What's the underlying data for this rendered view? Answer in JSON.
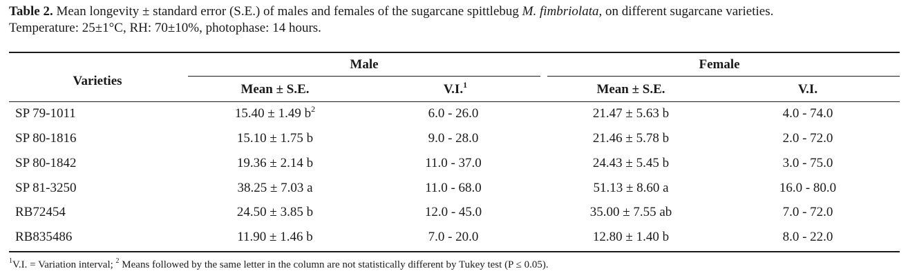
{
  "caption": {
    "label": "Table 2.",
    "text_before": " Mean longevity ± standard error (S.E.) of males and females of the sugarcane spittlebug ",
    "species": "M. fimbriolata",
    "text_after": ", on different sugarcane varieties.",
    "line2": "Temperature: 25±1°C, RH: 70±10%, photophase: 14 hours."
  },
  "header": {
    "varieties": "Varieties",
    "male": "Male",
    "female": "Female",
    "mean_se": "Mean ± S.E.",
    "vi": "V.I.",
    "vi_sup": "1"
  },
  "rows": [
    {
      "variety": "SP 79-1011",
      "male_mean": "15.40 ± 1.49 b",
      "male_mean_sup": "2",
      "male_vi": "6.0 - 26.0",
      "female_mean": "21.47 ± 5.63 b",
      "female_vi": "4.0 - 74.0"
    },
    {
      "variety": "SP 80-1816",
      "male_mean": "15.10 ± 1.75 b",
      "male_mean_sup": "",
      "male_vi": "9.0 - 28.0",
      "female_mean": "21.46 ± 5.78 b",
      "female_vi": "2.0 - 72.0"
    },
    {
      "variety": "SP 80-1842",
      "male_mean": "19.36 ± 2.14 b",
      "male_mean_sup": "",
      "male_vi": "11.0 - 37.0",
      "female_mean": "24.43 ± 5.45 b",
      "female_vi": "3.0 - 75.0"
    },
    {
      "variety": "SP 81-3250",
      "male_mean": "38.25 ± 7.03 a",
      "male_mean_sup": "",
      "male_vi": "11.0 - 68.0",
      "female_mean": "51.13 ± 8.60 a",
      "female_vi": "16.0 - 80.0"
    },
    {
      "variety": "RB72454",
      "male_mean": "24.50 ± 3.85 b",
      "male_mean_sup": "",
      "male_vi": "12.0 - 45.0",
      "female_mean": "35.00 ± 7.55 ab",
      "female_vi": "7.0 - 72.0"
    },
    {
      "variety": "RB835486",
      "male_mean": "11.90 ± 1.46 b",
      "male_mean_sup": "",
      "male_vi": "7.0 - 20.0",
      "female_mean": "12.80 ± 1.40 b",
      "female_vi": "8.0 - 22.0"
    }
  ],
  "footnote": {
    "sup1": "1",
    "text1": "V.I. = Variation interval; ",
    "sup2": "2",
    "text2": " Means followed by the same letter in the column are not statistically different by Tukey test (P ≤ 0.05)."
  }
}
